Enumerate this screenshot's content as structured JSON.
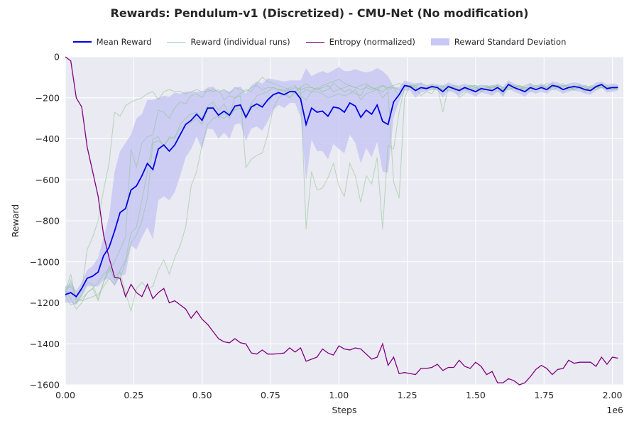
{
  "chart_data": {
    "type": "line",
    "title": "Rewards: Pendulum-v1 (Discretized) - CMU-Net (No modification)",
    "xlabel": "Steps",
    "ylabel": "Reward",
    "x_scale_label": "1e6",
    "xlim": [
      0,
      2.04
    ],
    "ylim": [
      -1600,
      0
    ],
    "grid": true,
    "legend_placement": "top-center",
    "x_ticks": [
      "0.00",
      "0.25",
      "0.50",
      "0.75",
      "1.00",
      "1.25",
      "1.50",
      "1.75",
      "2.00"
    ],
    "x_tick_values": [
      0,
      0.25,
      0.5,
      0.75,
      1.0,
      1.25,
      1.5,
      1.75,
      2.0
    ],
    "y_ticks": [
      "0",
      "−200",
      "−400",
      "−600",
      "−800",
      "−1000",
      "−1200",
      "−1400",
      "−1600"
    ],
    "y_tick_values": [
      0,
      -200,
      -400,
      -600,
      -800,
      -1000,
      -1200,
      -1400,
      -1600
    ],
    "legend": [
      {
        "label": "Mean Reward",
        "color": "#0000e6",
        "kind": "line"
      },
      {
        "label": "Reward (individual runs)",
        "color": "#a9d3a9",
        "kind": "line"
      },
      {
        "label": "Entropy (normalized)",
        "color": "#800080",
        "kind": "line"
      },
      {
        "label": "Reward Standard Deviation",
        "color": "#c8c8f5",
        "kind": "band"
      }
    ],
    "mean_reward": {
      "x": [
        0.0,
        0.02,
        0.04,
        0.06,
        0.08,
        0.1,
        0.12,
        0.14,
        0.16,
        0.18,
        0.2,
        0.22,
        0.24,
        0.26,
        0.28,
        0.3,
        0.32,
        0.34,
        0.36,
        0.38,
        0.4,
        0.42,
        0.44,
        0.46,
        0.48,
        0.5,
        0.52,
        0.54,
        0.56,
        0.58,
        0.6,
        0.62,
        0.64,
        0.66,
        0.68,
        0.7,
        0.72,
        0.74,
        0.76,
        0.78,
        0.8,
        0.82,
        0.84,
        0.86,
        0.88,
        0.9,
        0.92,
        0.94,
        0.96,
        0.98,
        1.0,
        1.02,
        1.04,
        1.06,
        1.08,
        1.1,
        1.12,
        1.14,
        1.16,
        1.18,
        1.2,
        1.22,
        1.24,
        1.26,
        1.28,
        1.3,
        1.32,
        1.34,
        1.36,
        1.38,
        1.4,
        1.42,
        1.44,
        1.46,
        1.48,
        1.5,
        1.52,
        1.54,
        1.56,
        1.58,
        1.6,
        1.62,
        1.64,
        1.66,
        1.68,
        1.7,
        1.72,
        1.74,
        1.76,
        1.78,
        1.8,
        1.82,
        1.84,
        1.86,
        1.88,
        1.9,
        1.92,
        1.94,
        1.96,
        1.98,
        2.0,
        2.02
      ],
      "y": [
        -1160,
        -1150,
        -1170,
        -1130,
        -1080,
        -1070,
        -1050,
        -970,
        -930,
        -850,
        -760,
        -740,
        -650,
        -630,
        -580,
        -520,
        -550,
        -450,
        -430,
        -460,
        -430,
        -380,
        -330,
        -310,
        -280,
        -310,
        -250,
        -250,
        -285,
        -265,
        -285,
        -240,
        -235,
        -295,
        -245,
        -230,
        -245,
        -210,
        -185,
        -175,
        -185,
        -170,
        -170,
        -205,
        -330,
        -250,
        -270,
        -265,
        -290,
        -245,
        -250,
        -270,
        -225,
        -240,
        -295,
        -260,
        -280,
        -235,
        -315,
        -330,
        -220,
        -185,
        -140,
        -145,
        -165,
        -150,
        -155,
        -145,
        -150,
        -170,
        -145,
        -155,
        -165,
        -150,
        -160,
        -170,
        -155,
        -160,
        -165,
        -150,
        -170,
        -135,
        -150,
        -160,
        -170,
        -150,
        -160,
        -150,
        -160,
        -140,
        -145,
        -160,
        -150,
        -145,
        -150,
        -160,
        -165,
        -145,
        -135,
        -155,
        -150,
        -150
      ]
    },
    "reward_std": {
      "upper": [
        -1120,
        -1100,
        -1140,
        -1100,
        -1040,
        -1020,
        -980,
        -880,
        -780,
        -560,
        -460,
        -420,
        -380,
        -300,
        -280,
        -210,
        -210,
        -200,
        -190,
        -195,
        -175,
        -180,
        -170,
        -170,
        -170,
        -170,
        -150,
        -145,
        -170,
        -160,
        -170,
        -150,
        -145,
        -180,
        -140,
        -120,
        -130,
        -105,
        -110,
        -115,
        -120,
        -115,
        -115,
        -115,
        -55,
        -95,
        -80,
        -70,
        -80,
        -65,
        -50,
        -70,
        -70,
        -60,
        -70,
        -75,
        -70,
        -55,
        -70,
        -95,
        -145,
        -150,
        -115,
        -125,
        -130,
        -125,
        -140,
        -130,
        -135,
        -140,
        -125,
        -135,
        -140,
        -130,
        -140,
        -145,
        -135,
        -140,
        -140,
        -130,
        -145,
        -115,
        -130,
        -140,
        -145,
        -130,
        -140,
        -130,
        -140,
        -120,
        -125,
        -140,
        -130,
        -125,
        -130,
        -140,
        -145,
        -125,
        -120,
        -135,
        -130,
        -135
      ],
      "lower": [
        -1200,
        -1200,
        -1210,
        -1170,
        -1120,
        -1120,
        -1120,
        -1090,
        -1080,
        -1120,
        -1070,
        -1060,
        -920,
        -940,
        -880,
        -830,
        -890,
        -700,
        -680,
        -700,
        -660,
        -580,
        -490,
        -450,
        -390,
        -450,
        -350,
        -355,
        -400,
        -370,
        -400,
        -330,
        -325,
        -410,
        -350,
        -340,
        -360,
        -315,
        -260,
        -235,
        -250,
        -225,
        -225,
        -295,
        -605,
        -405,
        -460,
        -460,
        -500,
        -425,
        -450,
        -470,
        -380,
        -420,
        -520,
        -445,
        -490,
        -415,
        -560,
        -565,
        -295,
        -220,
        -165,
        -165,
        -200,
        -175,
        -170,
        -160,
        -165,
        -200,
        -165,
        -175,
        -190,
        -170,
        -180,
        -195,
        -175,
        -180,
        -190,
        -170,
        -195,
        -155,
        -170,
        -180,
        -195,
        -170,
        -180,
        -170,
        -180,
        -160,
        -165,
        -180,
        -170,
        -165,
        -170,
        -180,
        -185,
        -165,
        -150,
        -175,
        -170,
        -165
      ]
    },
    "individual_runs": [
      {
        "y": [
          -1140,
          -1180,
          -1230,
          -1200,
          -1150,
          -1130,
          -1100,
          -1060,
          -1040,
          -1070,
          -1050,
          -1150,
          -1240,
          -1130,
          -1100,
          -1130,
          -1120,
          -1040,
          -990,
          -1060,
          -980,
          -920,
          -830,
          -630,
          -560,
          -430,
          -330,
          -300,
          -290,
          -300,
          -280,
          -260,
          -250,
          -300,
          -230,
          -190,
          -180,
          -170,
          -150,
          -160,
          -170,
          -150,
          -140,
          -180,
          -160,
          -170,
          -150,
          -170,
          -160,
          -130,
          -150,
          -170,
          -160,
          -180,
          -190,
          -140,
          -150,
          -160,
          -170,
          -150,
          -150,
          -190,
          -140,
          -150,
          -150,
          -190,
          -170,
          -180,
          -140,
          -270,
          -150,
          -150,
          -200,
          -180,
          -140,
          -140,
          -170,
          -150,
          -150,
          -140,
          -190,
          -130,
          -140,
          -160,
          -140,
          -130,
          -160,
          -150,
          -130,
          -140,
          -150,
          -140,
          -140,
          -160,
          -150,
          -170,
          -140,
          -150,
          -150,
          -160,
          -160,
          -150
        ]
      },
      {
        "y": [
          -1170,
          -1090,
          -1180,
          -1190,
          -1180,
          -1170,
          -1160,
          -1120,
          -1080,
          -1110,
          -1040,
          -990,
          -860,
          -830,
          -700,
          -560,
          -400,
          -390,
          -440,
          -390,
          -400,
          -330,
          -300,
          -280,
          -270,
          -300,
          -240,
          -220,
          -260,
          -230,
          -280,
          -200,
          -190,
          -540,
          -500,
          -480,
          -470,
          -380,
          -250,
          -200,
          -180,
          -200,
          -170,
          -150,
          -840,
          -560,
          -650,
          -640,
          -590,
          -520,
          -630,
          -680,
          -520,
          -580,
          -710,
          -580,
          -620,
          -490,
          -840,
          -430,
          -450,
          -270,
          -150,
          -140,
          -140,
          -160,
          -150,
          -160,
          -150,
          -140,
          -170,
          -150,
          -160,
          -150,
          -170,
          -160,
          -150,
          -140,
          -160,
          -170,
          -150,
          -160,
          -150,
          -140,
          -160,
          -170,
          -150,
          -140,
          -160,
          -150,
          -140,
          -130,
          -160,
          -150,
          -140,
          -150,
          -160,
          -140,
          -150,
          -150,
          -160,
          -140
        ]
      },
      {
        "y": [
          -1150,
          -1060,
          -1200,
          -1180,
          -1150,
          -1130,
          -1190,
          -1100,
          -1020,
          -1090,
          -1080,
          -1000,
          -910,
          -870,
          -800,
          -690,
          -420,
          -410,
          -430,
          -400,
          -390,
          -350,
          -330,
          -320,
          -300,
          -330,
          -260,
          -240,
          -300,
          -270,
          -300,
          -250,
          -240,
          -280,
          -230,
          -250,
          -230,
          -220,
          -190,
          -160,
          -160,
          -200,
          -170,
          -190,
          -210,
          -170,
          -170,
          -180,
          -200,
          -190,
          -180,
          -190,
          -180,
          -160,
          -210,
          -180,
          -170,
          -160,
          -200,
          -170,
          -610,
          -690,
          -200,
          -140,
          -160,
          -150,
          -150,
          -150,
          -150,
          -160,
          -150,
          -150,
          -160,
          -150,
          -160,
          -150,
          -170,
          -150,
          -150,
          -150,
          -160,
          -130,
          -150,
          -160,
          -150,
          -150,
          -160,
          -150,
          -150,
          -130,
          -150,
          -160,
          -150,
          -140,
          -150,
          -160,
          -150,
          -150,
          -140,
          -150,
          -150,
          -150
        ]
      },
      {
        "y": [
          -1130,
          -1120,
          -1170,
          -1140,
          -940,
          -880,
          -800,
          -650,
          -520,
          -270,
          -290,
          -240,
          -220,
          -210,
          -200,
          -180,
          -170,
          -210,
          -170,
          -160,
          -170,
          -170,
          -180,
          -170,
          -160,
          -170,
          -170,
          -160,
          -170,
          -160,
          -180,
          -150,
          -160,
          -170,
          -150,
          -140,
          -160,
          -150,
          -150,
          -160,
          -170,
          -160,
          -150,
          -160,
          -150,
          -150,
          -160,
          -150,
          -140,
          -170,
          -160,
          -150,
          -140,
          -150,
          -160,
          -150,
          -160,
          -150,
          -140,
          -160,
          -150,
          -160,
          -150,
          -140,
          -150,
          -160,
          -150,
          -140,
          -150,
          -160,
          -150,
          -140,
          -150,
          -160,
          -150,
          -140,
          -150,
          -160,
          -150,
          -140,
          -150,
          -160,
          -150,
          -140,
          -150,
          -160,
          -150,
          -140,
          -150,
          -160,
          -150,
          -140,
          -150,
          -160,
          -150,
          -140,
          -150,
          -160,
          -150,
          -140,
          -150,
          -160
        ]
      },
      {
        "y": [
          -1160,
          -1210,
          -1200,
          -1160,
          -1100,
          -1110,
          -1180,
          -1100,
          -1040,
          -1000,
          -940,
          -880,
          -450,
          -540,
          -420,
          -390,
          -380,
          -260,
          -270,
          -300,
          -250,
          -220,
          -230,
          -190,
          -180,
          -200,
          -160,
          -170,
          -160,
          -210,
          -190,
          -200,
          -180,
          -160,
          -170,
          -130,
          -100,
          -120,
          -130,
          -140,
          -150,
          -160,
          -170,
          -150,
          -130,
          -150,
          -160,
          -140,
          -130,
          -120,
          -110,
          -130,
          -140,
          -150,
          -140,
          -130,
          -150,
          -160,
          -140,
          -150,
          -140,
          -130,
          -140,
          -150,
          -140,
          -130,
          -140,
          -150,
          -160,
          -150,
          -140,
          -150,
          -160,
          -150,
          -140,
          -150,
          -160,
          -150,
          -140,
          -150,
          -160,
          -150,
          -140,
          -150,
          -160,
          -150,
          -140,
          -150,
          -160,
          -150,
          -140,
          -150,
          -160,
          -150,
          -140,
          -150,
          -160,
          -150,
          -140,
          -150,
          -160,
          -150
        ]
      }
    ],
    "entropy_normalized": {
      "x": [
        0.0,
        0.02,
        0.04,
        0.06,
        0.08,
        0.1,
        0.12,
        0.14,
        0.16,
        0.18,
        0.2,
        0.22,
        0.24,
        0.26,
        0.28,
        0.3,
        0.32,
        0.34,
        0.36,
        0.38,
        0.4,
        0.42,
        0.44,
        0.46,
        0.48,
        0.5,
        0.52,
        0.54,
        0.56,
        0.58,
        0.6,
        0.62,
        0.64,
        0.66,
        0.68,
        0.7,
        0.72,
        0.74,
        0.76,
        0.78,
        0.8,
        0.82,
        0.84,
        0.86,
        0.88,
        0.9,
        0.92,
        0.94,
        0.96,
        0.98,
        1.0,
        1.02,
        1.04,
        1.06,
        1.08,
        1.1,
        1.12,
        1.14,
        1.16,
        1.18,
        1.2,
        1.22,
        1.24,
        1.26,
        1.28,
        1.3,
        1.32,
        1.34,
        1.36,
        1.38,
        1.4,
        1.42,
        1.44,
        1.46,
        1.48,
        1.5,
        1.52,
        1.54,
        1.56,
        1.58,
        1.6,
        1.62,
        1.64,
        1.66,
        1.68,
        1.7,
        1.72,
        1.74,
        1.76,
        1.78,
        1.8,
        1.82,
        1.84,
        1.86,
        1.88,
        1.9,
        1.92,
        1.94,
        1.96,
        1.98,
        2.0,
        2.02
      ],
      "y": [
        0,
        -20,
        -200,
        -245,
        -440,
        -560,
        -680,
        -870,
        -980,
        -1075,
        -1080,
        -1170,
        -1110,
        -1150,
        -1170,
        -1110,
        -1180,
        -1150,
        -1130,
        -1200,
        -1190,
        -1210,
        -1230,
        -1275,
        -1240,
        -1280,
        -1305,
        -1340,
        -1375,
        -1390,
        -1395,
        -1375,
        -1395,
        -1400,
        -1445,
        -1450,
        -1430,
        -1450,
        -1450,
        -1448,
        -1445,
        -1420,
        -1440,
        -1420,
        -1485,
        -1475,
        -1465,
        -1425,
        -1445,
        -1455,
        -1410,
        -1425,
        -1430,
        -1420,
        -1425,
        -1450,
        -1475,
        -1465,
        -1400,
        -1505,
        -1465,
        -1545,
        -1540,
        -1545,
        -1550,
        -1520,
        -1520,
        -1515,
        -1500,
        -1530,
        -1515,
        -1515,
        -1480,
        -1510,
        -1520,
        -1490,
        -1510,
        -1550,
        -1535,
        -1590,
        -1590,
        -1570,
        -1580,
        -1600,
        -1590,
        -1560,
        -1525,
        -1505,
        -1520,
        -1550,
        -1525,
        -1520,
        -1480,
        -1495,
        -1490,
        -1490,
        -1490,
        -1510,
        -1465,
        -1500,
        -1465,
        -1470
      ]
    }
  }
}
